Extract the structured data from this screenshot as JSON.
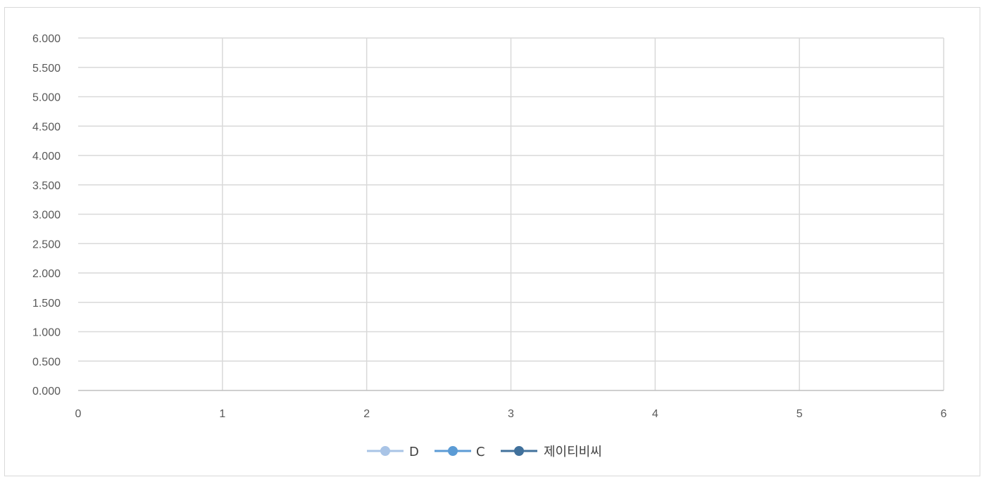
{
  "chart_data": {
    "type": "line",
    "title": "",
    "xlabel": "",
    "ylabel": "",
    "xlim": [
      0,
      6
    ],
    "ylim": [
      0,
      6
    ],
    "x_ticks": [
      "0",
      "1",
      "2",
      "3",
      "4",
      "5",
      "6"
    ],
    "y_ticks": [
      "0.000",
      "0.500",
      "1.000",
      "1.500",
      "2.000",
      "2.500",
      "3.000",
      "3.500",
      "4.000",
      "4.500",
      "5.000",
      "5.500",
      "6.000"
    ],
    "grid": true,
    "legend_position": "bottom",
    "series": [
      {
        "name": "D",
        "color": "#a9c4e6",
        "x": [],
        "y": []
      },
      {
        "name": "C",
        "color": "#5b9bd5",
        "x": [],
        "y": []
      },
      {
        "name": "제이티비씨",
        "color": "#41719c",
        "x": [],
        "y": []
      }
    ]
  }
}
